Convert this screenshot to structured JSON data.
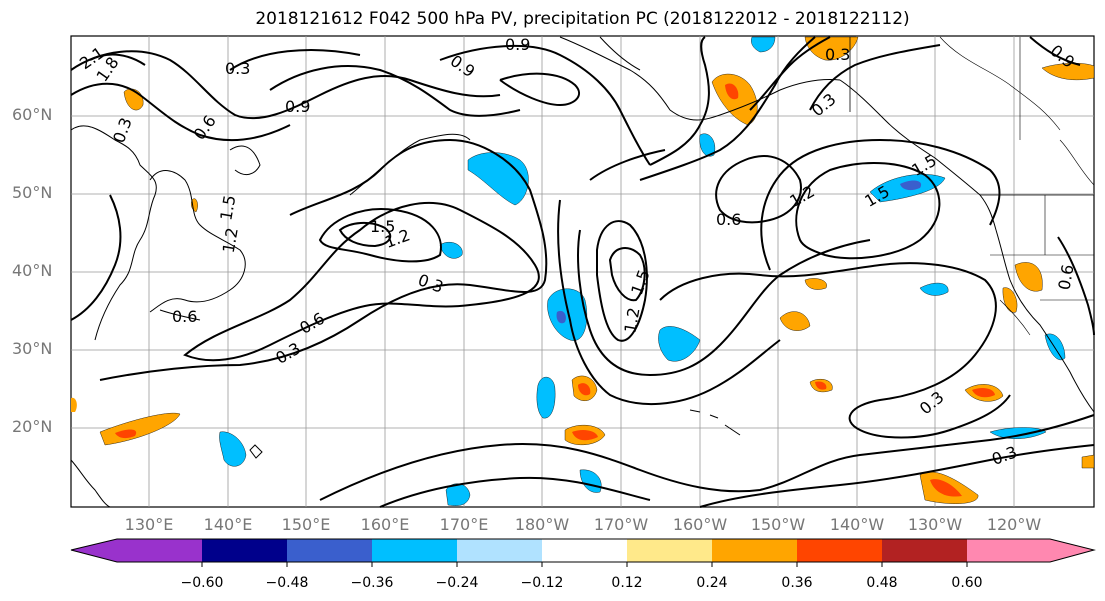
{
  "title": "2018121612 F042 500 hPa PV, precipitation PC (2018122012 - 2018122112)",
  "map": {
    "lat_labels": [
      "60°N",
      "50°N",
      "40°N",
      "30°N",
      "20°N"
    ],
    "lon_labels": [
      "130°E",
      "140°E",
      "150°E",
      "160°E",
      "170°E",
      "180°W",
      "170°W",
      "160°W",
      "150°W",
      "140°W",
      "130°W",
      "120°W"
    ],
    "contour_labels": [
      "0.3",
      "0.6",
      "0.9",
      "1.2",
      "1.5",
      "1.8",
      "2.1",
      "0.9",
      "0.6",
      "1.2",
      "1.5",
      "0.3",
      "0.6",
      "0.3",
      "1.5",
      "1.2",
      "0.9",
      "0.6",
      "1.2",
      "1.5",
      "0.3",
      "0.3",
      "0.3",
      "0.3",
      "0.6",
      "0.9",
      "0.3",
      "1.5"
    ]
  },
  "colorbar": {
    "ticks": [
      "−0.60",
      "−0.48",
      "−0.36",
      "−0.24",
      "−0.12",
      "0.12",
      "0.24",
      "0.36",
      "0.48",
      "0.60"
    ],
    "colors": [
      "#9932cc",
      "#00008b",
      "#3a5fcd",
      "#00bfff",
      "#b0e2ff",
      "#ffffff",
      "#ffe98a",
      "#ffa500",
      "#ff4500",
      "#b22222",
      "#ff88b0"
    ]
  }
}
